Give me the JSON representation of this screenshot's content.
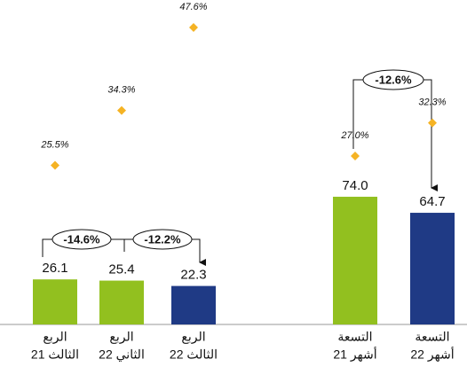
{
  "chart_data": {
    "type": "bar",
    "categories": [
      [
        "الربع",
        "الثالث 21"
      ],
      [
        "الربع",
        "الثاني 22"
      ],
      [
        "الربع",
        "الثالث 22"
      ],
      [
        "التسعة",
        "أشهر 21"
      ],
      [
        "التسعة",
        "أشهر 22"
      ]
    ],
    "series": [
      {
        "values": [
          26.1,
          25.4,
          22.3,
          74,
          64.7
        ],
        "value_labels": [
          "26.1",
          "25.4",
          "22.3",
          "74.0",
          "64.7"
        ],
        "colors": [
          "#92c01f",
          "#92c01f",
          "#1f3a85",
          "#92c01f",
          "#1f3a85"
        ]
      },
      {
        "axis": "y2",
        "color": "#f5b324",
        "values": [
          25.5,
          34.3,
          47.6,
          27,
          32.3
        ],
        "value_labels": [
          "25.5%",
          "34.3%",
          "47.6%",
          "27.0%",
          "32.3%"
        ]
      }
    ],
    "ylim": [
      0,
      188
    ],
    "y2lim": [
      0,
      52
    ],
    "annotations": [
      {
        "text": "-14.6%",
        "color": "#c0174f"
      },
      {
        "text": "-12.2%",
        "color": "#2ecc2e"
      },
      {
        "text": "-12.6%",
        "color": "#c0174f"
      }
    ]
  }
}
